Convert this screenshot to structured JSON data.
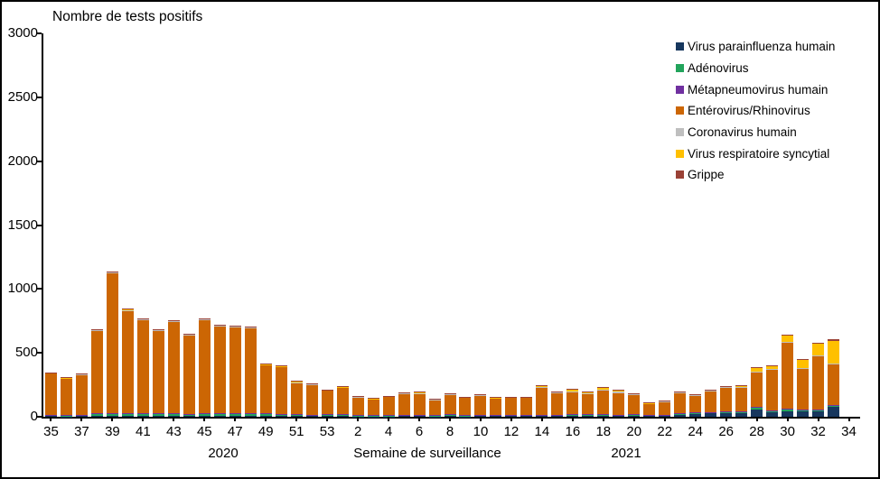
{
  "title": "Nombre de tests positifs",
  "axes": {
    "x_axis_title": "Semaine de surveillance",
    "year_left": "2020",
    "year_right": "2021"
  },
  "chart_data": {
    "type": "bar",
    "stacked": true,
    "title": "Nombre de tests positifs",
    "xlabel": "Semaine de surveillance",
    "ylabel": "",
    "ylim": [
      0,
      3000
    ],
    "y_ticks": [
      0,
      500,
      1000,
      1500,
      2000,
      2500,
      3000
    ],
    "grid": false,
    "legend_position": "top-right",
    "categories": [
      "35",
      "36",
      "37",
      "38",
      "39",
      "40",
      "41",
      "42",
      "43",
      "44",
      "45",
      "46",
      "47",
      "48",
      "49",
      "50",
      "51",
      "52",
      "53",
      "1",
      "2",
      "3",
      "4",
      "5",
      "6",
      "7",
      "8",
      "9",
      "10",
      "11",
      "12",
      "13",
      "14",
      "15",
      "16",
      "17",
      "18",
      "19",
      "20",
      "21",
      "22",
      "23",
      "24",
      "25",
      "26",
      "27",
      "28",
      "29",
      "30",
      "31",
      "32",
      "33"
    ],
    "x_tick_labels": [
      "35",
      "37",
      "39",
      "41",
      "43",
      "45",
      "47",
      "49",
      "51",
      "53",
      "2",
      "4",
      "6",
      "8",
      "10",
      "12",
      "14",
      "16",
      "18",
      "20",
      "22",
      "24",
      "26",
      "28",
      "30",
      "32",
      "34"
    ],
    "year_groups": [
      {
        "label": "2020",
        "weeks": "35-53"
      },
      {
        "label": "2021",
        "weeks": "1-33"
      }
    ],
    "series": [
      {
        "name": "Virus parainfluenza humain",
        "color": "#17375E",
        "values": [
          4,
          3,
          4,
          6,
          8,
          8,
          10,
          8,
          10,
          8,
          8,
          8,
          10,
          8,
          10,
          8,
          5,
          5,
          5,
          4,
          3,
          3,
          3,
          4,
          4,
          3,
          5,
          3,
          6,
          4,
          4,
          5,
          6,
          6,
          8,
          5,
          8,
          6,
          8,
          5,
          6,
          14,
          18,
          25,
          30,
          28,
          58,
          33,
          44,
          40,
          42,
          78
        ]
      },
      {
        "name": "Adénovirus",
        "color": "#22A45C",
        "values": [
          8,
          8,
          10,
          18,
          14,
          15,
          16,
          15,
          14,
          13,
          18,
          18,
          16,
          16,
          14,
          13,
          12,
          10,
          12,
          12,
          6,
          7,
          6,
          9,
          9,
          6,
          11,
          7,
          8,
          7,
          8,
          8,
          9,
          8,
          9,
          11,
          9,
          8,
          9,
          6,
          7,
          9,
          12,
          11,
          9,
          11,
          15,
          13,
          17,
          14,
          14,
          9
        ]
      },
      {
        "name": "Métapneumovirus humain",
        "color": "#7030A0",
        "values": [
          2,
          2,
          2,
          3,
          3,
          3,
          4,
          3,
          4,
          3,
          3,
          3,
          3,
          3,
          3,
          3,
          3,
          2,
          2,
          2,
          2,
          2,
          2,
          2,
          2,
          2,
          2,
          2,
          2,
          2,
          2,
          2,
          2,
          2,
          2,
          2,
          2,
          2,
          2,
          1,
          1,
          2,
          2,
          2,
          2,
          2,
          2,
          2,
          2,
          2,
          2,
          5
        ]
      },
      {
        "name": "Entérovirus/Rhinovirus",
        "color": "#CC6604",
        "values": [
          326,
          289,
          316,
          650,
          1101,
          806,
          730,
          650,
          717,
          615,
          733,
          683,
          675,
          669,
          378,
          367,
          248,
          237,
          187,
          212,
          145,
          128,
          146,
          167,
          169,
          123,
          153,
          139,
          151,
          133,
          137,
          136,
          206,
          168,
          172,
          161,
          186,
          169,
          149,
          88,
          100,
          161,
          135,
          159,
          187,
          189,
          269,
          318,
          517,
          321,
          419,
          320
        ]
      },
      {
        "name": "Coronavirus humain",
        "color": "#BFBFBF",
        "values": [
          3,
          2,
          2,
          3,
          4,
          4,
          4,
          3,
          4,
          4,
          4,
          4,
          4,
          4,
          4,
          4,
          3,
          3,
          3,
          3,
          2,
          2,
          2,
          3,
          3,
          2,
          3,
          2,
          3,
          2,
          2,
          2,
          12,
          6,
          10,
          8,
          8,
          10,
          8,
          4,
          4,
          4,
          4,
          5,
          6,
          5,
          8,
          8,
          8,
          5,
          6,
          8
        ]
      },
      {
        "name": "Virus respiratoire syncytial",
        "color": "#FFC000",
        "values": [
          2,
          3,
          3,
          4,
          8,
          7,
          6,
          4,
          4,
          4,
          4,
          4,
          4,
          4,
          3,
          3,
          3,
          3,
          3,
          2,
          2,
          2,
          2,
          3,
          9,
          3,
          9,
          3,
          4,
          3,
          3,
          3,
          5,
          5,
          13,
          10,
          17,
          10,
          6,
          5,
          7,
          5,
          6,
          7,
          8,
          9,
          32,
          24,
          55,
          68,
          95,
          172
        ]
      },
      {
        "name": "Grippe",
        "color": "#9A4136",
        "values": [
          3,
          1,
          1,
          1,
          2,
          2,
          2,
          2,
          2,
          1,
          2,
          2,
          2,
          2,
          2,
          2,
          8,
          2,
          2,
          2,
          2,
          1,
          1,
          2,
          2,
          1,
          2,
          1,
          2,
          1,
          1,
          1,
          5,
          2,
          2,
          3,
          3,
          4,
          2,
          1,
          1,
          3,
          1,
          1,
          1,
          1,
          2,
          2,
          2,
          2,
          2,
          12
        ]
      }
    ]
  }
}
